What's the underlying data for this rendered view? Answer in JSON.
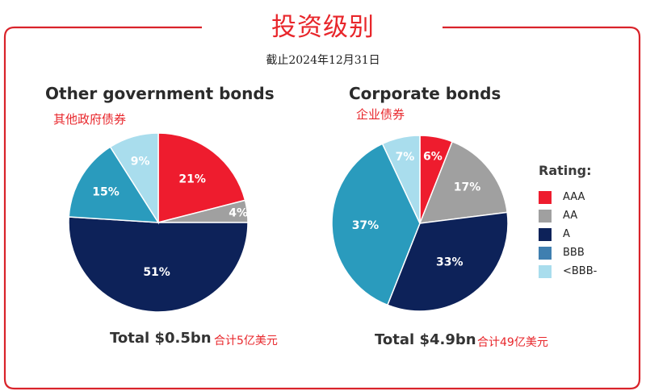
{
  "header": {
    "title": "投资级别",
    "subtitle": "截止2024年12月31日"
  },
  "colors": {
    "accent": "#e8262b",
    "AAA": "#ee1c2e",
    "AA": "#a0a0a0",
    "A": "#0d2259",
    "BBB_left": "#2a9bbd",
    "BBB_legend": "#3f7fb0",
    "below_BBB": "#a9dded"
  },
  "legend": {
    "title": "Rating:",
    "items": [
      {
        "label": "AAA",
        "color": "#ee1c2e"
      },
      {
        "label": "AA",
        "color": "#a0a0a0"
      },
      {
        "label": "A",
        "color": "#0d2259"
      },
      {
        "label": "BBB",
        "color": "#3f7fb0"
      },
      {
        "label": "<BBB-",
        "color": "#a9dded"
      }
    ]
  },
  "charts": [
    {
      "title": "Other government bonds",
      "subtitle": "其他政府债券",
      "total": "Total $0.5bn",
      "total_cn": "合计5亿美元"
    },
    {
      "title": "Corporate bonds",
      "subtitle": "企业债券",
      "total": "Total $4.9bn",
      "total_cn": "合计49亿美元"
    }
  ],
  "chart_data": [
    {
      "type": "pie",
      "title": "Other government bonds",
      "categories": [
        "AAA",
        "AA",
        "A",
        "BBB",
        "<BBB-"
      ],
      "values": [
        21,
        4,
        51,
        15,
        9
      ],
      "labels": [
        "21%",
        "4%",
        "51%",
        "15%",
        "9%"
      ],
      "colors": [
        "#ee1c2e",
        "#a0a0a0",
        "#0d2259",
        "#2a9bbd",
        "#a9dded"
      ],
      "total": "$0.5bn",
      "legend_position": "right"
    },
    {
      "type": "pie",
      "title": "Corporate bonds",
      "categories": [
        "AAA",
        "AA",
        "A",
        "BBB",
        "<BBB-"
      ],
      "values": [
        6,
        17,
        33,
        37,
        7
      ],
      "labels": [
        "6%",
        "17%",
        "33%",
        "37%",
        "7%"
      ],
      "colors": [
        "#ee1c2e",
        "#a0a0a0",
        "#0d2259",
        "#2a9bbd",
        "#a9dded"
      ],
      "total": "$4.9bn",
      "legend_position": "right"
    }
  ]
}
